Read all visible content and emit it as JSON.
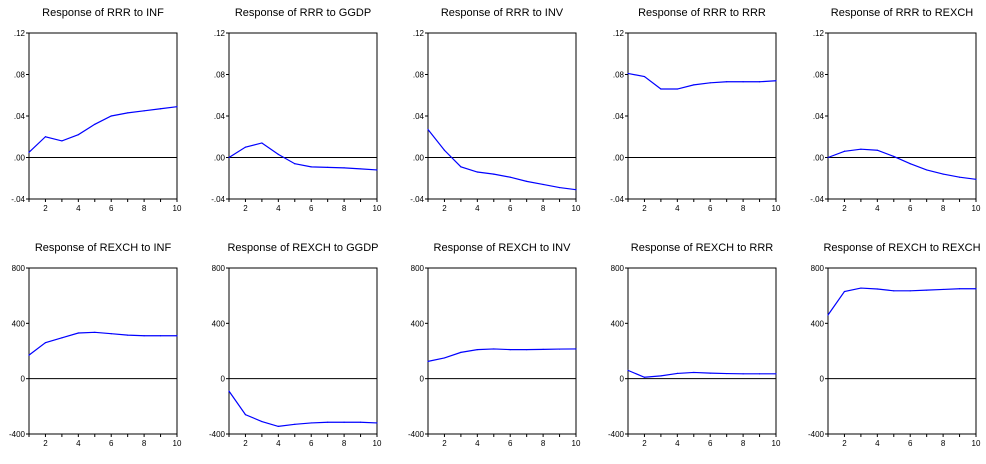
{
  "chart_data": [
    {
      "type": "line",
      "title": "Response of RRR to INF",
      "x": [
        1,
        2,
        3,
        4,
        5,
        6,
        7,
        8,
        9,
        10
      ],
      "values": [
        0.005,
        0.02,
        0.016,
        0.022,
        0.032,
        0.04,
        0.043,
        0.045,
        0.047,
        0.049
      ],
      "ylim": [
        -0.04,
        0.12
      ],
      "yticks": [
        -0.04,
        0.0,
        0.04,
        0.08,
        0.12
      ],
      "ytick_labels": [
        "-.04",
        ".00",
        ".04",
        ".08",
        ".12"
      ],
      "xticks": [
        2,
        4,
        6,
        8,
        10
      ],
      "xtick_labels": [
        "2",
        "4",
        "6",
        "8",
        "10"
      ],
      "line_color": "#0000ff",
      "zero_line": true
    },
    {
      "type": "line",
      "title": "Response of RRR to GGDP",
      "x": [
        1,
        2,
        3,
        4,
        5,
        6,
        7,
        8,
        9,
        10
      ],
      "values": [
        0.0,
        0.01,
        0.014,
        0.003,
        -0.006,
        -0.009,
        -0.0095,
        -0.01,
        -0.011,
        -0.012
      ],
      "ylim": [
        -0.04,
        0.12
      ],
      "yticks": [
        -0.04,
        0.0,
        0.04,
        0.08,
        0.12
      ],
      "ytick_labels": [
        "-.04",
        ".00",
        ".04",
        ".08",
        ".12"
      ],
      "xticks": [
        2,
        4,
        6,
        8,
        10
      ],
      "xtick_labels": [
        "2",
        "4",
        "6",
        "8",
        "10"
      ],
      "line_color": "#0000ff",
      "zero_line": true
    },
    {
      "type": "line",
      "title": "Response of RRR to INV",
      "x": [
        1,
        2,
        3,
        4,
        5,
        6,
        7,
        8,
        9,
        10
      ],
      "values": [
        0.027,
        0.007,
        -0.009,
        -0.014,
        -0.016,
        -0.019,
        -0.023,
        -0.026,
        -0.029,
        -0.031
      ],
      "ylim": [
        -0.04,
        0.12
      ],
      "yticks": [
        -0.04,
        0.0,
        0.04,
        0.08,
        0.12
      ],
      "ytick_labels": [
        "-.04",
        ".00",
        ".04",
        ".08",
        ".12"
      ],
      "xticks": [
        2,
        4,
        6,
        8,
        10
      ],
      "xtick_labels": [
        "2",
        "4",
        "6",
        "8",
        "10"
      ],
      "line_color": "#0000ff",
      "zero_line": true
    },
    {
      "type": "line",
      "title": "Response of RRR to RRR",
      "x": [
        1,
        2,
        3,
        4,
        5,
        6,
        7,
        8,
        9,
        10
      ],
      "values": [
        0.081,
        0.078,
        0.066,
        0.066,
        0.07,
        0.072,
        0.073,
        0.073,
        0.073,
        0.074
      ],
      "ylim": [
        -0.04,
        0.12
      ],
      "yticks": [
        -0.04,
        0.0,
        0.04,
        0.08,
        0.12
      ],
      "ytick_labels": [
        "-.04",
        ".00",
        ".04",
        ".08",
        ".12"
      ],
      "xticks": [
        2,
        4,
        6,
        8,
        10
      ],
      "xtick_labels": [
        "2",
        "4",
        "6",
        "8",
        "10"
      ],
      "line_color": "#0000ff",
      "zero_line": true
    },
    {
      "type": "line",
      "title": "Response of RRR to REXCH",
      "x": [
        1,
        2,
        3,
        4,
        5,
        6,
        7,
        8,
        9,
        10
      ],
      "values": [
        0.0,
        0.006,
        0.008,
        0.007,
        0.001,
        -0.006,
        -0.012,
        -0.016,
        -0.019,
        -0.021
      ],
      "ylim": [
        -0.04,
        0.12
      ],
      "yticks": [
        -0.04,
        0.0,
        0.04,
        0.08,
        0.12
      ],
      "ytick_labels": [
        "-.04",
        ".00",
        ".04",
        ".08",
        ".12"
      ],
      "xticks": [
        2,
        4,
        6,
        8,
        10
      ],
      "xtick_labels": [
        "2",
        "4",
        "6",
        "8",
        "10"
      ],
      "line_color": "#0000ff",
      "zero_line": true
    },
    {
      "type": "line",
      "title": "Response of REXCH to INF",
      "x": [
        1,
        2,
        3,
        4,
        5,
        6,
        7,
        8,
        9,
        10
      ],
      "values": [
        170,
        260,
        295,
        330,
        335,
        325,
        315,
        310,
        310,
        310
      ],
      "ylim": [
        -400,
        800
      ],
      "yticks": [
        -400,
        0,
        400,
        800
      ],
      "ytick_labels": [
        "-400",
        "0",
        "400",
        "800"
      ],
      "xticks": [
        2,
        4,
        6,
        8,
        10
      ],
      "xtick_labels": [
        "2",
        "4",
        "6",
        "8",
        "10"
      ],
      "line_color": "#0000ff",
      "zero_line": true
    },
    {
      "type": "line",
      "title": "Response of REXCH to GGDP",
      "x": [
        1,
        2,
        3,
        4,
        5,
        6,
        7,
        8,
        9,
        10
      ],
      "values": [
        -90,
        -260,
        -310,
        -345,
        -330,
        -320,
        -315,
        -315,
        -315,
        -320
      ],
      "ylim": [
        -400,
        800
      ],
      "yticks": [
        -400,
        0,
        400,
        800
      ],
      "ytick_labels": [
        "-400",
        "0",
        "400",
        "800"
      ],
      "xticks": [
        2,
        4,
        6,
        8,
        10
      ],
      "xtick_labels": [
        "2",
        "4",
        "6",
        "8",
        "10"
      ],
      "line_color": "#0000ff",
      "zero_line": true
    },
    {
      "type": "line",
      "title": "Response of REXCH to INV",
      "x": [
        1,
        2,
        3,
        4,
        5,
        6,
        7,
        8,
        9,
        10
      ],
      "values": [
        125,
        150,
        190,
        210,
        215,
        210,
        210,
        212,
        214,
        215
      ],
      "ylim": [
        -400,
        800
      ],
      "yticks": [
        -400,
        0,
        400,
        800
      ],
      "ytick_labels": [
        "-400",
        "0",
        "400",
        "800"
      ],
      "xticks": [
        2,
        4,
        6,
        8,
        10
      ],
      "xtick_labels": [
        "2",
        "4",
        "6",
        "8",
        "10"
      ],
      "line_color": "#0000ff",
      "zero_line": true
    },
    {
      "type": "line",
      "title": "Response of REXCH to RRR",
      "x": [
        1,
        2,
        3,
        4,
        5,
        6,
        7,
        8,
        9,
        10
      ],
      "values": [
        60,
        10,
        20,
        38,
        45,
        40,
        37,
        35,
        35,
        35
      ],
      "ylim": [
        -400,
        800
      ],
      "yticks": [
        -400,
        0,
        400,
        800
      ],
      "ytick_labels": [
        "-400",
        "0",
        "400",
        "800"
      ],
      "xticks": [
        2,
        4,
        6,
        8,
        10
      ],
      "xtick_labels": [
        "2",
        "4",
        "6",
        "8",
        "10"
      ],
      "line_color": "#0000ff",
      "zero_line": true
    },
    {
      "type": "line",
      "title": "Response of REXCH to REXCH",
      "x": [
        1,
        2,
        3,
        4,
        5,
        6,
        7,
        8,
        9,
        10
      ],
      "values": [
        460,
        630,
        655,
        648,
        635,
        635,
        640,
        645,
        650,
        650
      ],
      "ylim": [
        -400,
        800
      ],
      "yticks": [
        -400,
        0,
        400,
        800
      ],
      "ytick_labels": [
        "-400",
        "0",
        "400",
        "800"
      ],
      "xticks": [
        2,
        4,
        6,
        8,
        10
      ],
      "xtick_labels": [
        "2",
        "4",
        "6",
        "8",
        "10"
      ],
      "line_color": "#0000ff",
      "zero_line": true
    }
  ]
}
